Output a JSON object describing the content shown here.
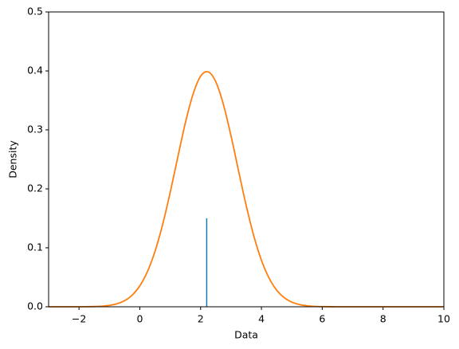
{
  "chart_data": {
    "type": "line",
    "x_label": "Data",
    "y_label": "Density",
    "xlim": [
      -3,
      10
    ],
    "ylim": [
      0,
      0.5
    ],
    "xticks": [
      {
        "value": -2,
        "label": "−2"
      },
      0,
      2,
      4,
      6,
      8,
      10
    ],
    "yticks": [
      {
        "value": 0,
        "label": "0.0"
      },
      0.1,
      0.2,
      0.3,
      0.4,
      0.5
    ],
    "series": [
      {
        "color": "#ff7f0e",
        "x": [
          -3,
          -2.75,
          -2.5,
          -2.25,
          -2,
          -1.75,
          -1.5,
          -1.25,
          -1,
          -0.75,
          -0.5,
          -0.25,
          0,
          0.25,
          0.5,
          0.75,
          1,
          1.25,
          1.5,
          1.75,
          2,
          2.25,
          2.5,
          2.75,
          3,
          3.25,
          3.5,
          3.75,
          4,
          4.25,
          4.5,
          4.75,
          5,
          5.25,
          5.5,
          5.75,
          6,
          6.25,
          6.5,
          6.75,
          7,
          7.25,
          7.5,
          7.75,
          8,
          8.25,
          8.5,
          8.75,
          9,
          9.25,
          9.5,
          9.75,
          10
        ],
        "values": [
          0,
          0,
          0,
          0,
          0,
          0.0002,
          0.0004,
          0.001,
          0.0024,
          0.0051,
          0.0104,
          0.0198,
          0.0355,
          0.0596,
          0.0941,
          0.1394,
          0.1942,
          0.2541,
          0.3123,
          0.3605,
          0.391,
          0.3984,
          0.3814,
          0.3429,
          0.2897,
          0.2299,
          0.1714,
          0.12,
          0.079,
          0.0488,
          0.0283,
          0.0155,
          0.0079,
          0.0038,
          0.0017,
          0.0007,
          0.0003,
          0.0001,
          0,
          0,
          0,
          0,
          0,
          0,
          0,
          0,
          0,
          0,
          0,
          0,
          0,
          0,
          0
        ]
      }
    ],
    "vlines": [
      {
        "x": 2.2,
        "value": 0.15,
        "color": "#1f77b4"
      }
    ]
  }
}
